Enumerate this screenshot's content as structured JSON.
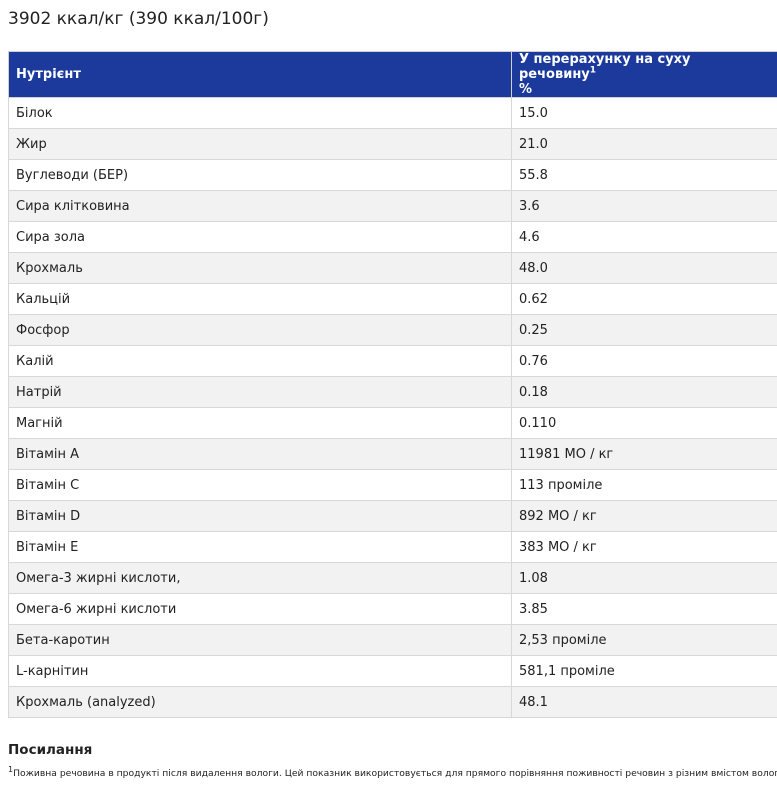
{
  "energy": "3902 ккал/кг (390 ккал/100г)",
  "table": {
    "header": {
      "nutrient": "Нутрієнт",
      "dry_matter": "У перерахунку на суху речовину",
      "dry_matter_sup": "1",
      "unit": "%"
    },
    "rows": [
      {
        "name": "Білок",
        "value": "15.0"
      },
      {
        "name": "Жир",
        "value": "21.0"
      },
      {
        "name": "Вуглеводи (БЕР)",
        "value": "55.8"
      },
      {
        "name": "Сира клітковина",
        "value": "3.6"
      },
      {
        "name": "Сира зола",
        "value": "4.6"
      },
      {
        "name": "Крохмаль",
        "value": "48.0"
      },
      {
        "name": "Кальцій",
        "value": "0.62"
      },
      {
        "name": "Фосфор",
        "value": "0.25"
      },
      {
        "name": "Калій",
        "value": "0.76"
      },
      {
        "name": "Натрій",
        "value": "0.18"
      },
      {
        "name": "Магній",
        "value": "0.110"
      },
      {
        "name": "Вітамін А",
        "value": "11981 МО / кг"
      },
      {
        "name": "Вітамін C",
        "value": "113 проміле"
      },
      {
        "name": "Вітамін D",
        "value": "892 МО / кг"
      },
      {
        "name": "Вітамін E",
        "value": "383 МО / кг"
      },
      {
        "name": "Омега-3 жирні кислоти,",
        "value": "1.08"
      },
      {
        "name": "Омега-6 жирні кислоти",
        "value": "3.85"
      },
      {
        "name": "Бета-каротин",
        "value": "2,53 проміле"
      },
      {
        "name": "L-карнітин",
        "value": "581,1 проміле"
      },
      {
        "name": "Крохмаль (analyzed)",
        "value": "48.1"
      }
    ]
  },
  "references": {
    "title": "Посилання",
    "footnote_sup": "1",
    "footnote_text": "Поживна речовина в продукті після видалення вологи. Цей показник використовується для прямого порівняння поживності речовин з різним вмістом вологи."
  }
}
